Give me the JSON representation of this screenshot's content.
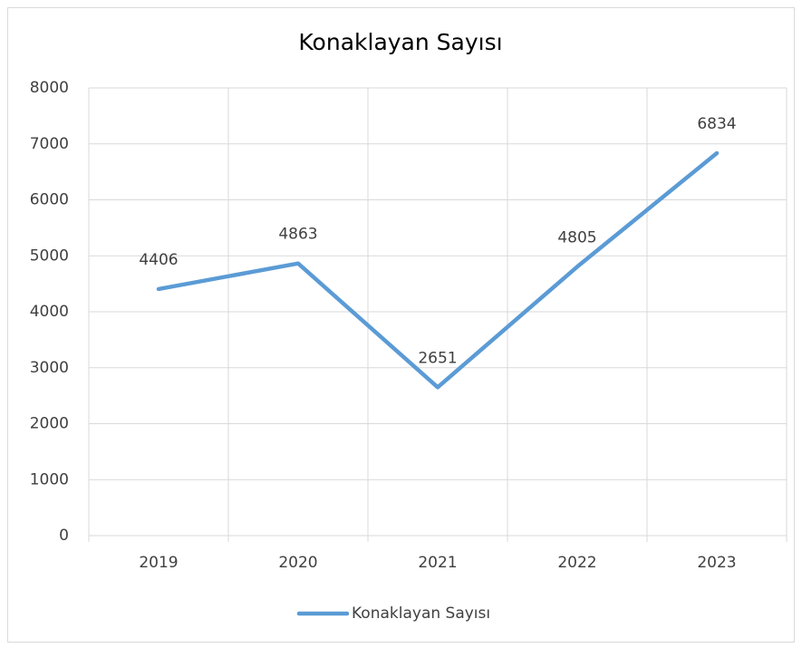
{
  "chart_data": {
    "type": "line",
    "title": "Konaklayan Sayısı",
    "categories": [
      "2019",
      "2020",
      "2021",
      "2022",
      "2023"
    ],
    "series": [
      {
        "name": "Konaklayan Sayısı",
        "color": "#5b9bd5",
        "values": [
          4406,
          4863,
          2651,
          4805,
          6834
        ]
      }
    ],
    "ylim": [
      0,
      8000
    ],
    "yticks": [
      0,
      1000,
      2000,
      3000,
      4000,
      5000,
      6000,
      7000,
      8000
    ],
    "grid": true,
    "legend": "bottom"
  }
}
